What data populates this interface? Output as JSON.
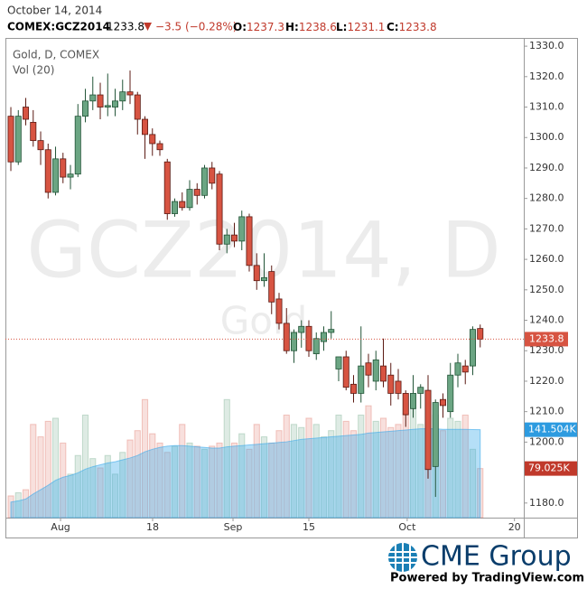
{
  "header": {
    "date": "October 14, 2014",
    "symbol": "COMEX:GCZ2014",
    "last": "1233.8",
    "change": "−3.5 (−0.28%)",
    "ohlc": [
      {
        "label": "O:",
        "value": "1237.3"
      },
      {
        "label": "H:",
        "value": "1238.6"
      },
      {
        "label": "L:",
        "value": "1231.1"
      },
      {
        "label": "C:",
        "value": "1233.8"
      }
    ]
  },
  "chart_data": {
    "type": "candlestick",
    "title": "Gold, D, COMEX",
    "volume_title": "Vol (20)",
    "watermark": "GCZ2014, D",
    "watermark_sub": "Gold",
    "open": [
      1307,
      1292,
      1310,
      1305,
      1299,
      1296,
      1282,
      1293,
      1287,
      1288,
      1307,
      1312,
      1314,
      1310,
      1310,
      1312,
      1315,
      1314,
      1306,
      1301,
      1298,
      1292,
      1275,
      1279,
      1277,
      1283,
      1281,
      1290,
      1288,
      1265,
      1268,
      1266,
      1274,
      1258,
      1253,
      1256,
      1247,
      1239,
      1230,
      1236,
      1238,
      1229,
      1233,
      1236,
      1224,
      1228,
      1219,
      1216,
      1226,
      1220,
      1225,
      1222,
      1220,
      1216,
      1211,
      1216,
      1217,
      1192,
      1214,
      1210,
      1222,
      1225,
      1225,
      1237.3
    ],
    "high": [
      1310,
      1309,
      1313,
      1309,
      1302,
      1298,
      1297,
      1295,
      1291,
      1311,
      1316,
      1320,
      1318,
      1321,
      1316,
      1319,
      1322,
      1315,
      1307,
      1303,
      1299,
      1293,
      1280,
      1282,
      1286,
      1285,
      1291,
      1292,
      1289,
      1270,
      1272,
      1276,
      1275,
      1262,
      1262,
      1258,
      1249,
      1244,
      1237,
      1240,
      1240,
      1236,
      1238,
      1243,
      1228,
      1230,
      1222,
      1238,
      1229,
      1230,
      1234,
      1226,
      1224,
      1217,
      1222,
      1219,
      1222,
      1214,
      1216,
      1226,
      1229,
      1227,
      1238,
      1238.6
    ],
    "low": [
      1289,
      1291,
      1304,
      1297,
      1291,
      1280,
      1281,
      1285,
      1283,
      1287,
      1305,
      1309,
      1306,
      1307,
      1307,
      1309,
      1311,
      1301,
      1293,
      1294,
      1294,
      1273,
      1274,
      1276,
      1276,
      1278,
      1280,
      1283,
      1263,
      1262,
      1264,
      1263,
      1256,
      1250,
      1251,
      1242,
      1237,
      1229,
      1226,
      1231,
      1228,
      1227,
      1230,
      1234,
      1220,
      1217,
      1213,
      1213,
      1218,
      1217,
      1218,
      1212,
      1214,
      1205,
      1208,
      1211,
      1188,
      1182,
      1208,
      1208,
      1218,
      1219,
      1222,
      1231.1
    ],
    "close": [
      1292,
      1307,
      1306,
      1299,
      1296,
      1282,
      1293,
      1287,
      1288,
      1307,
      1312,
      1314,
      1310,
      1310.5,
      1312,
      1315,
      1314,
      1306,
      1301,
      1298,
      1296,
      1275,
      1279,
      1277,
      1283,
      1281,
      1290,
      1285,
      1265,
      1268,
      1266,
      1274,
      1258,
      1253,
      1254,
      1246,
      1239,
      1230,
      1236,
      1238,
      1230,
      1234,
      1236,
      1237,
      1228,
      1218,
      1216,
      1225,
      1222,
      1227,
      1220,
      1216,
      1216,
      1209,
      1216,
      1218,
      1191,
      1213,
      1212,
      1222,
      1226,
      1223,
      1237,
      1233.8
    ],
    "volume": [
      35,
      40,
      45,
      150,
      130,
      155,
      160,
      120,
      70,
      100,
      165,
      95,
      80,
      100,
      70,
      105,
      125,
      140,
      190,
      135,
      120,
      105,
      115,
      150,
      120,
      115,
      110,
      115,
      120,
      190,
      120,
      135,
      110,
      150,
      130,
      120,
      140,
      165,
      150,
      145,
      160,
      150,
      130,
      140,
      165,
      155,
      140,
      165,
      180,
      155,
      160,
      145,
      150,
      165,
      175,
      150,
      140,
      165,
      140,
      160,
      155,
      165,
      110,
      79.025
    ],
    "volume_ma": [
      25,
      27,
      30,
      38,
      45,
      52,
      60,
      65,
      68,
      72,
      78,
      82,
      85,
      88,
      90,
      93,
      96,
      100,
      106,
      110,
      113,
      115,
      116,
      116,
      115,
      114,
      113,
      112,
      112,
      114,
      115,
      116,
      117,
      118,
      119,
      120,
      121,
      122,
      124,
      126,
      127,
      128,
      129,
      130,
      131,
      132,
      133,
      134,
      136,
      137,
      138,
      139,
      140,
      141,
      142,
      143,
      143,
      143,
      142,
      142,
      142,
      142,
      141.8,
      141.504
    ],
    "up_color": "#6ba583",
    "down_color": "#d75442",
    "up_volume_color": "rgba(107,165,131,0.22)",
    "down_volume_color": "rgba(215,84,66,0.18)",
    "ma_color": "rgba(60,170,235,0.38)",
    "ylim": [
      1175.2,
      1332.7
    ],
    "yticks": [
      {
        "value": 1180,
        "label": "1180.0"
      },
      {
        "value": 1190,
        "label": "1190.0"
      },
      {
        "value": 1200,
        "label": "1200.0"
      },
      {
        "value": 1210,
        "label": "1210.0"
      },
      {
        "value": 1220,
        "label": "1220.0"
      },
      {
        "value": 1230,
        "label": "1230.0"
      },
      {
        "value": 1240,
        "label": "1240.0"
      },
      {
        "value": 1250,
        "label": "1250.0"
      },
      {
        "value": 1260,
        "label": "1260.0"
      },
      {
        "value": 1270,
        "label": "1270.0"
      },
      {
        "value": 1280,
        "label": "1280.0"
      },
      {
        "value": 1290,
        "label": "1290.0"
      },
      {
        "value": 1300,
        "label": "1300.0"
      },
      {
        "value": 1310,
        "label": "1310.0"
      },
      {
        "value": 1320,
        "label": "1320.0"
      },
      {
        "value": 1330,
        "label": "1330.0"
      }
    ],
    "xlim": [
      -0.73,
      68.85
    ],
    "xticks": [
      {
        "value": 6.67,
        "label": "Aug"
      },
      {
        "value": 19.03,
        "label": "18"
      },
      {
        "value": 29.82,
        "label": "Sep"
      },
      {
        "value": 40,
        "label": "15"
      },
      {
        "value": 53.2,
        "label": "Oct"
      },
      {
        "value": 67.6,
        "label": "20"
      }
    ],
    "vlim": [
      0,
      250
    ],
    "last_price": 1233.8,
    "last_price_color": "#d75442",
    "volume_tags": [
      {
        "value": 141.504,
        "label": "141.504K",
        "color": "#2d9be0"
      },
      {
        "value": 79.025,
        "label": "79.025K",
        "color": "#c0392b"
      }
    ]
  },
  "branding": {
    "logo": "CME Group",
    "powered": "Powered by TradingView.com"
  }
}
